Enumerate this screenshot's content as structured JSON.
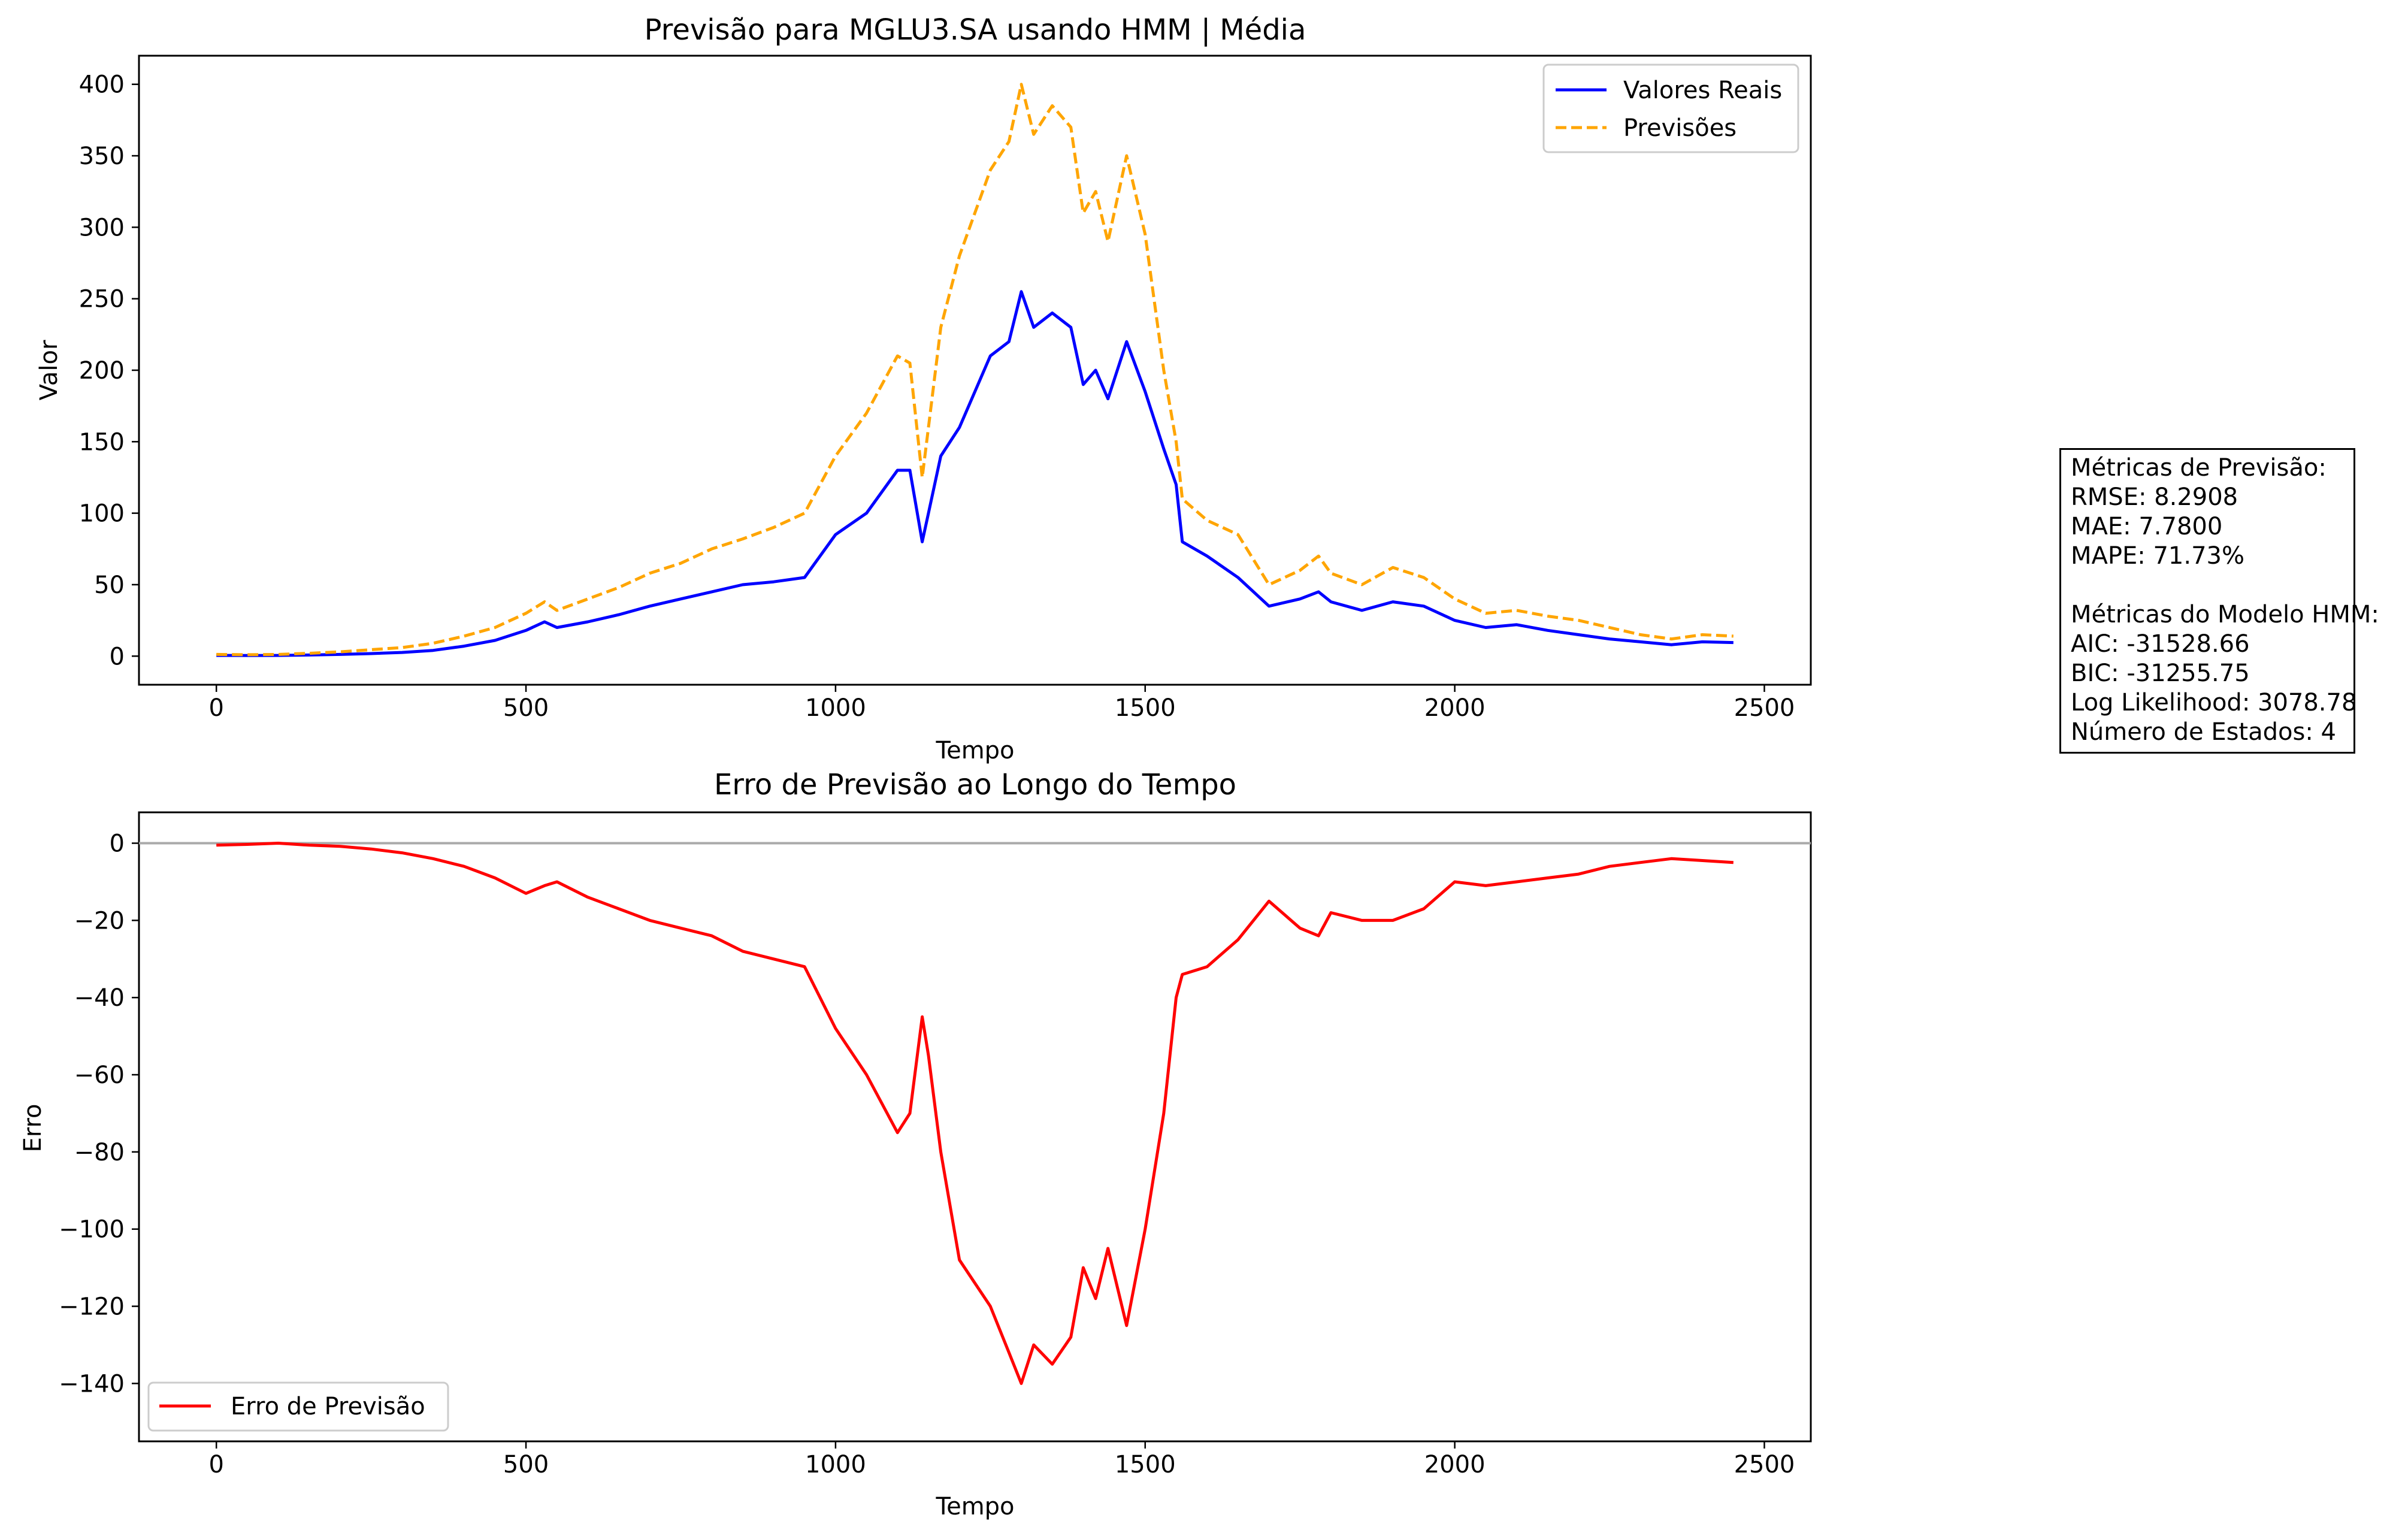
{
  "chart_data": [
    {
      "type": "line",
      "title": "Previsão para MGLU3.SA usando HMM | Média",
      "xlabel": "Tempo",
      "ylabel": "Valor",
      "xlim": [
        -125,
        2575
      ],
      "ylim": [
        -20,
        420
      ],
      "xticks": [
        0,
        500,
        1000,
        1500,
        2000,
        2500
      ],
      "yticks": [
        0,
        50,
        100,
        150,
        200,
        250,
        300,
        350,
        400
      ],
      "grid": false,
      "legend_position": "top-right",
      "x": [
        0,
        50,
        100,
        150,
        200,
        250,
        300,
        350,
        400,
        450,
        500,
        530,
        550,
        600,
        650,
        700,
        750,
        800,
        850,
        900,
        950,
        1000,
        1050,
        1100,
        1120,
        1140,
        1150,
        1170,
        1200,
        1250,
        1280,
        1300,
        1320,
        1350,
        1380,
        1400,
        1420,
        1440,
        1470,
        1500,
        1530,
        1550,
        1560,
        1600,
        1650,
        1700,
        1750,
        1780,
        1800,
        1850,
        1900,
        1950,
        2000,
        2050,
        2100,
        2150,
        2200,
        2250,
        2300,
        2350,
        2400,
        2450
      ],
      "series": [
        {
          "name": "Valores Reais",
          "color": "#0000ff",
          "style": "solid",
          "values": [
            0.5,
            0.4,
            0.5,
            0.8,
            1.2,
            1.8,
            2.6,
            4,
            7,
            11,
            18,
            24,
            20,
            24,
            29,
            35,
            40,
            45,
            50,
            52,
            55,
            85,
            100,
            130,
            130,
            80,
            100,
            140,
            160,
            210,
            220,
            255,
            230,
            240,
            230,
            190,
            200,
            180,
            220,
            185,
            145,
            120,
            80,
            70,
            55,
            35,
            40,
            45,
            38,
            32,
            38,
            35,
            25,
            20,
            22,
            18,
            15,
            12,
            10,
            8,
            10,
            9.5
          ]
        },
        {
          "name": "Previsões",
          "color": "#ffa500",
          "style": "dashed",
          "values": [
            1.2,
            1,
            1.2,
            2,
            3,
            4.5,
            6,
            9,
            14,
            20,
            30,
            38,
            32,
            40,
            48,
            58,
            65,
            75,
            82,
            90,
            100,
            140,
            170,
            210,
            205,
            125,
            160,
            230,
            280,
            340,
            360,
            400,
            365,
            385,
            370,
            310,
            325,
            290,
            350,
            295,
            200,
            150,
            110,
            95,
            85,
            50,
            60,
            70,
            58,
            50,
            62,
            55,
            40,
            30,
            32,
            28,
            25,
            20,
            15,
            12,
            15,
            14
          ]
        }
      ]
    },
    {
      "type": "line",
      "title": "Erro de Previsão ao Longo do Tempo",
      "xlabel": "Tempo",
      "ylabel": "Erro",
      "xlim": [
        -125,
        2575
      ],
      "ylim": [
        -155,
        8
      ],
      "xticks": [
        0,
        500,
        1000,
        1500,
        2000,
        2500
      ],
      "yticks": [
        0,
        -20,
        -40,
        -60,
        -80,
        -100,
        -120,
        -140
      ],
      "grid": false,
      "reference_line": {
        "y": 0,
        "color": "#aaaaaa"
      },
      "legend_position": "bottom-left",
      "x": [
        0,
        50,
        100,
        150,
        200,
        250,
        300,
        350,
        400,
        450,
        500,
        530,
        550,
        600,
        650,
        700,
        750,
        800,
        850,
        900,
        950,
        1000,
        1050,
        1100,
        1120,
        1140,
        1150,
        1170,
        1200,
        1250,
        1280,
        1300,
        1320,
        1350,
        1380,
        1400,
        1420,
        1440,
        1470,
        1500,
        1530,
        1550,
        1560,
        1600,
        1650,
        1700,
        1750,
        1780,
        1800,
        1850,
        1900,
        1950,
        2000,
        2050,
        2100,
        2150,
        2200,
        2250,
        2300,
        2350,
        2400,
        2450
      ],
      "series": [
        {
          "name": "Erro de Previsão",
          "color": "#ff0000",
          "style": "solid",
          "values": [
            -0.5,
            -0.3,
            0,
            -0.5,
            -0.8,
            -1.5,
            -2.5,
            -4,
            -6,
            -9,
            -13,
            -11,
            -10,
            -14,
            -17,
            -20,
            -22,
            -24,
            -28,
            -30,
            -32,
            -48,
            -60,
            -75,
            -70,
            -45,
            -55,
            -80,
            -108,
            -120,
            -132,
            -140,
            -130,
            -135,
            -128,
            -110,
            -118,
            -105,
            -125,
            -100,
            -70,
            -40,
            -34,
            -32,
            -25,
            -15,
            -22,
            -24,
            -18,
            -20,
            -20,
            -17,
            -10,
            -11,
            -10,
            -9,
            -8,
            -6,
            -5,
            -4,
            -4.5,
            -5
          ]
        }
      ]
    }
  ],
  "metrics": {
    "title": "Métricas de Previsão:",
    "rmse": "RMSE: 8.2908",
    "mae": "MAE: 7.7800",
    "mape": "MAPE: 71.73%",
    "hmm_title": "Métricas do Modelo HMM:",
    "aic": "AIC: -31528.66",
    "bic": "BIC: -31255.75",
    "log_likelihood": "Log Likelihood: 3078.78",
    "num_states": "Número de Estados: 4"
  }
}
